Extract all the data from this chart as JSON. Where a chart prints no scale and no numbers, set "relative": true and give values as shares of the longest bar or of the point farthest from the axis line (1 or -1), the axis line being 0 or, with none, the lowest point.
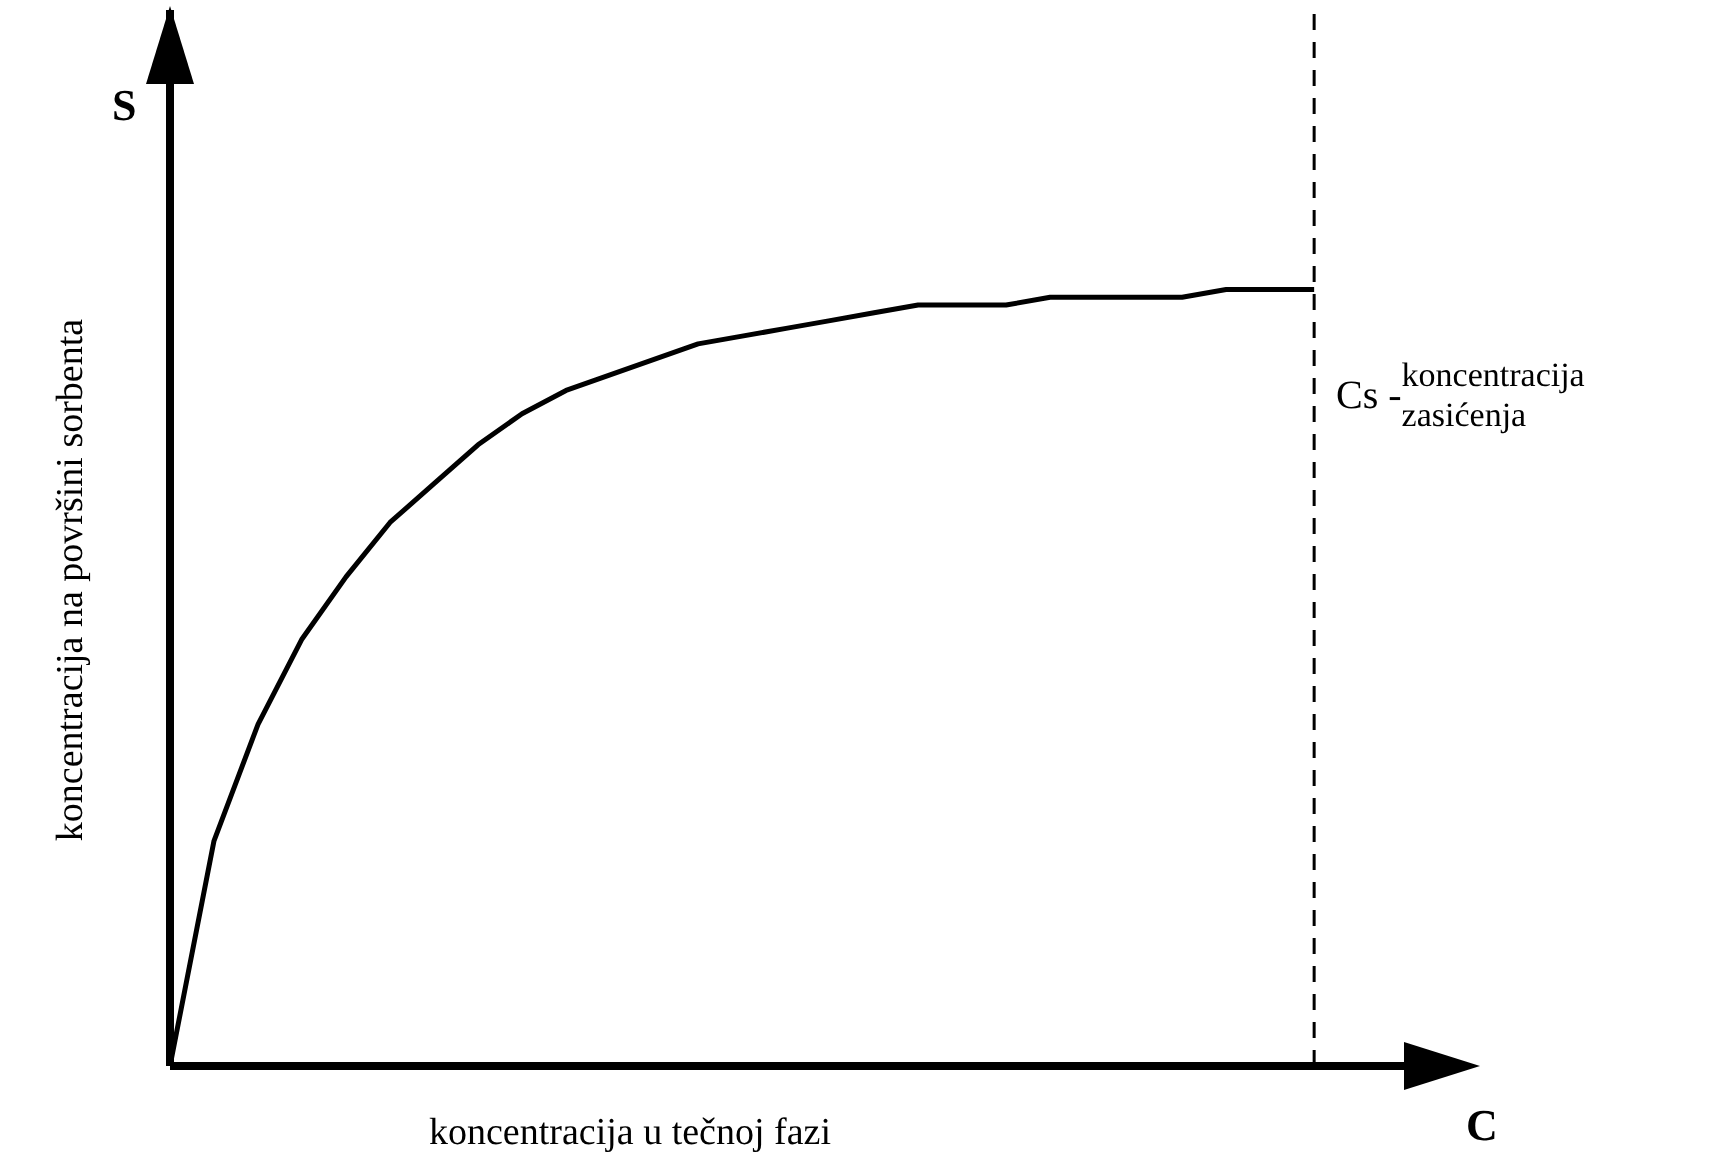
{
  "chart_data": {
    "type": "line",
    "relative": true,
    "xlabel": "koncentracija u  tečnoj fazi",
    "ylabel": "koncentracija na površini sorbenta",
    "annotations": [
      "S",
      "C",
      "Cs -",
      "koncentracija zasićenja"
    ],
    "categories": [
      null,
      null,
      null,
      null,
      null,
      null,
      null,
      null,
      null,
      null,
      null,
      null,
      null,
      null,
      null,
      null,
      null,
      null,
      null,
      null,
      null,
      null,
      null,
      null,
      null,
      null,
      null
    ],
    "series": [
      {
        "color": "#000000",
        "values": [
          0,
          0.29,
          0.44,
          0.55,
          0.63,
          0.7,
          0.75,
          0.8,
          0.84,
          0.87,
          0.89,
          0.91,
          0.93,
          0.94,
          0.95,
          0.96,
          0.97,
          0.98,
          0.98,
          0.98,
          0.99,
          0.99,
          0.99,
          0.99,
          1,
          1,
          1
        ]
      }
    ],
    "grid": false,
    "legend": false,
    "marker": "none",
    "line_style": "solid"
  }
}
